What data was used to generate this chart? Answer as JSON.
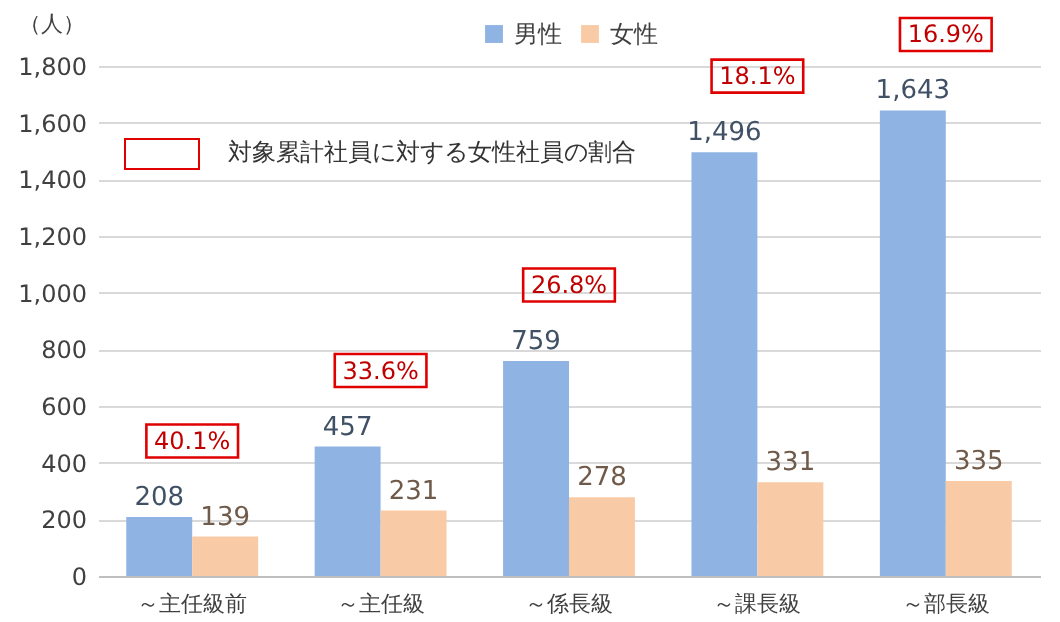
{
  "chart_data": {
    "type": "bar",
    "ylabel": "（人）",
    "categories": [
      "～主任級前",
      "～主任級",
      "～係長級",
      "～課長級",
      "～部長級"
    ],
    "series": [
      {
        "name": "男性",
        "color": "#8fb4e3",
        "values": [
          208,
          457,
          759,
          1496,
          1643
        ],
        "value_labels": [
          "208",
          "457",
          "759",
          "1,496",
          "1,643"
        ]
      },
      {
        "name": "女性",
        "color": "#f8cba6",
        "values": [
          139,
          231,
          278,
          331,
          335
        ],
        "value_labels": [
          "139",
          "231",
          "278",
          "331",
          "335"
        ]
      }
    ],
    "ylim": [
      0,
      1800
    ],
    "yticks": [
      0,
      {
        "value": 200,
        "label": "200"
      },
      {
        "value": 400,
        "label": "400"
      },
      {
        "value": 600,
        "label": "600"
      },
      {
        "value": 800,
        "label": "800"
      },
      {
        "value": 1000,
        "label": "1,000"
      },
      {
        "value": 1200,
        "label": "1,200"
      },
      {
        "value": 1400,
        "label": "1,400"
      },
      {
        "value": 1600,
        "label": "1,600"
      },
      {
        "value": 1800,
        "label": "1,800"
      }
    ],
    "grid": "y",
    "legend": "top",
    "annotations": [
      "対象累計社員に対する女性社員の割合",
      "40.1%",
      "33.6%",
      "26.8%",
      "18.1%",
      "16.9%"
    ]
  }
}
